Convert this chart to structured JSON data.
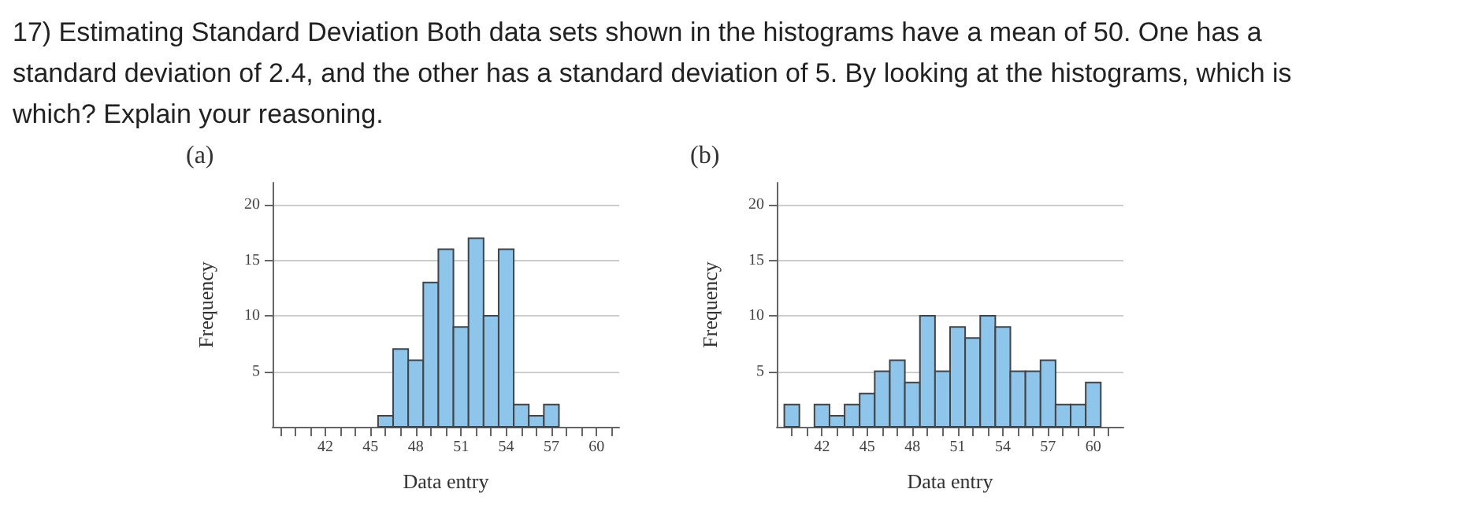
{
  "chart_data": [
    {
      "type": "histogram",
      "title": "(a)",
      "annotations": [
        "17) Estimating Standard Deviation Both data sets shown in the histograms have a mean of 50. One has a standard deviation of 2.4, and the other has a standard deviation of 5. By looking at the histograms, which is which? Explain your reasoning."
      ],
      "xlabel": "Data entry",
      "ylabel": "Frequency",
      "color": "#8ec5ea",
      "bins": [
        45.5,
        46.5,
        47.5,
        48.5,
        49.5,
        50.5,
        51.5,
        52.5,
        53.5,
        54.5,
        55.5,
        56.5,
        57.5
      ],
      "values": [
        1,
        7,
        6,
        13,
        16,
        9,
        17,
        10,
        16,
        2,
        1,
        2
      ],
      "xlim": [
        38.5,
        61.5
      ],
      "xticks": [
        {
          "value": 39,
          "label": null
        },
        {
          "value": 40,
          "label": null
        },
        {
          "value": 41,
          "label": null
        },
        42,
        {
          "value": 43,
          "label": null
        },
        {
          "value": 44,
          "label": null
        },
        45,
        {
          "value": 46,
          "label": null
        },
        {
          "value": 47,
          "label": null
        },
        48,
        {
          "value": 49,
          "label": null
        },
        {
          "value": 50,
          "label": null
        },
        51,
        {
          "value": 52,
          "label": null
        },
        {
          "value": 53,
          "label": null
        },
        54,
        {
          "value": 55,
          "label": null
        },
        {
          "value": 56,
          "label": null
        },
        57,
        {
          "value": 58,
          "label": null
        },
        {
          "value": 59,
          "label": null
        },
        60,
        {
          "value": 61,
          "label": null
        }
      ],
      "ylim": [
        0,
        22
      ],
      "yticks": [
        5,
        10,
        15,
        20
      ],
      "grid": "y"
    },
    {
      "type": "histogram",
      "title": "(b)",
      "xlabel": "Data entry",
      "ylabel": "Frequency",
      "color": "#8ec5ea",
      "bins": [
        39.5,
        40.5,
        41.5,
        42.5,
        43.5,
        44.5,
        45.5,
        46.5,
        47.5,
        48.5,
        49.5,
        50.5,
        51.5,
        52.5,
        53.5,
        54.5,
        55.5,
        56.5,
        57.5,
        58.5,
        59.5,
        60.5
      ],
      "values": [
        2,
        0,
        2,
        1,
        2,
        3,
        5,
        6,
        4,
        10,
        5,
        9,
        8,
        10,
        9,
        5,
        5,
        6,
        2,
        2,
        4
      ],
      "xlim": [
        39,
        62
      ],
      "xticks": [
        {
          "value": 40,
          "label": null
        },
        {
          "value": 41,
          "label": null
        },
        42,
        {
          "value": 43,
          "label": null
        },
        {
          "value": 44,
          "label": null
        },
        45,
        {
          "value": 46,
          "label": null
        },
        {
          "value": 47,
          "label": null
        },
        48,
        {
          "value": 49,
          "label": null
        },
        {
          "value": 50,
          "label": null
        },
        51,
        {
          "value": 52,
          "label": null
        },
        {
          "value": 53,
          "label": null
        },
        54,
        {
          "value": 55,
          "label": null
        },
        {
          "value": 56,
          "label": null
        },
        57,
        {
          "value": 58,
          "label": null
        },
        {
          "value": 59,
          "label": null
        },
        60,
        {
          "value": 61,
          "label": null
        }
      ],
      "ylim": [
        0,
        22
      ],
      "yticks": [
        5,
        10,
        15,
        20
      ],
      "grid": "y"
    }
  ]
}
